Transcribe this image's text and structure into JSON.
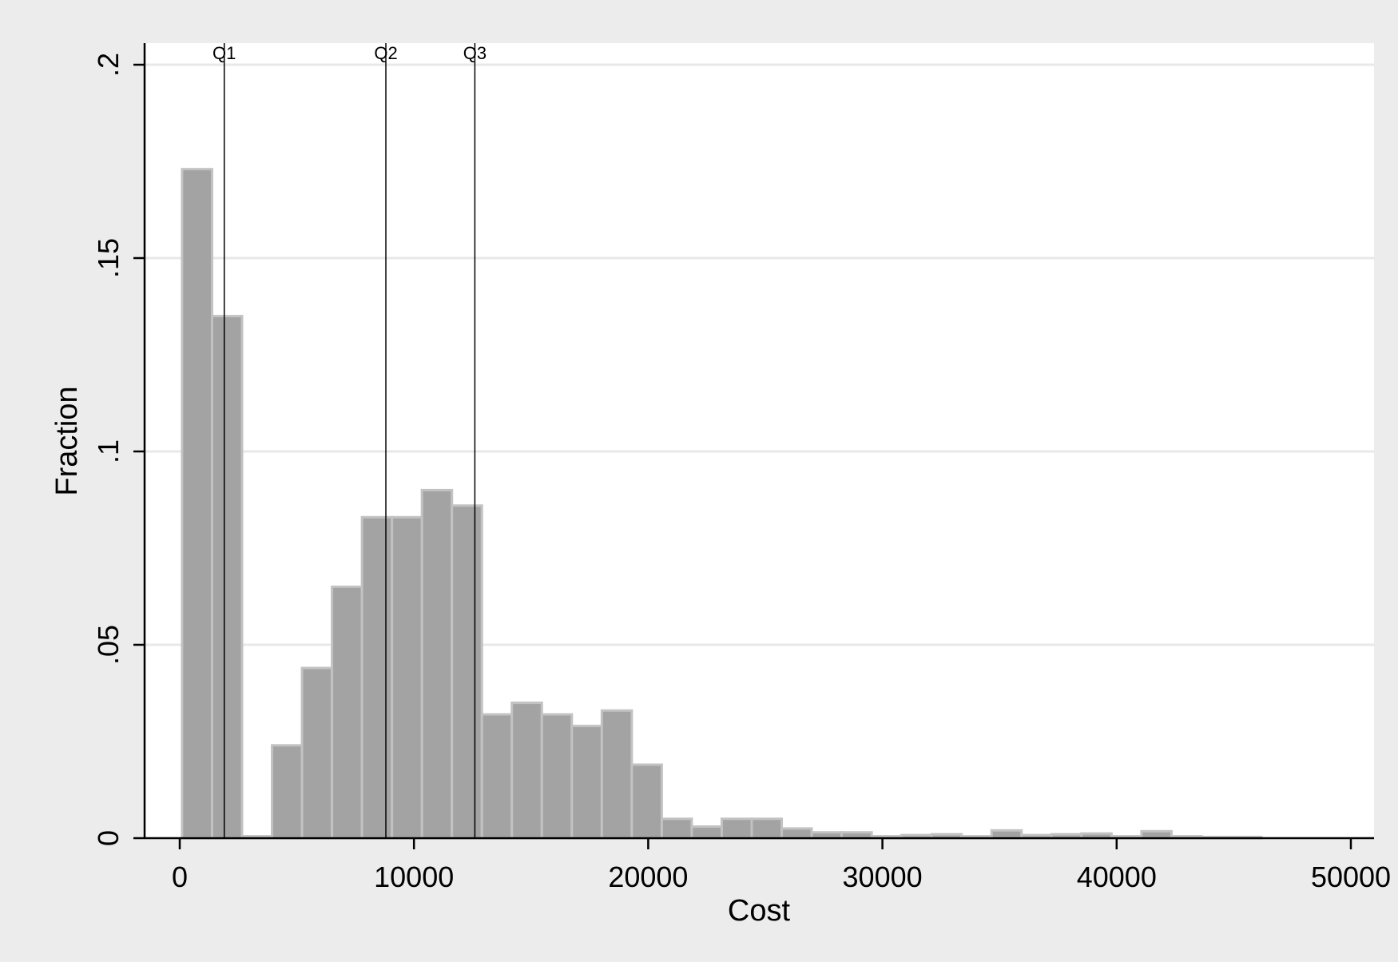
{
  "chart_data": {
    "type": "bar",
    "xlabel": "Cost",
    "ylabel": "Fraction",
    "xlim": [
      0,
      50000
    ],
    "ylim": [
      0,
      0.2
    ],
    "x_ticks": [
      {
        "value": 0,
        "label": "0"
      },
      {
        "value": 10000,
        "label": "10000"
      },
      {
        "value": 20000,
        "label": "20000"
      },
      {
        "value": 30000,
        "label": "30000"
      },
      {
        "value": 40000,
        "label": "40000"
      },
      {
        "value": 50000,
        "label": "50000"
      }
    ],
    "y_ticks": [
      {
        "value": 0,
        "label": "0"
      },
      {
        "value": 0.05,
        "label": ".05"
      },
      {
        "value": 0.1,
        "label": ".1"
      },
      {
        "value": 0.15,
        "label": ".15"
      },
      {
        "value": 0.2,
        "label": ".2"
      }
    ],
    "grid": true,
    "bin_start": 100,
    "bin_width": 1280,
    "values": [
      0.173,
      0.135,
      0.0005,
      0.024,
      0.044,
      0.065,
      0.083,
      0.083,
      0.09,
      0.086,
      0.032,
      0.035,
      0.032,
      0.029,
      0.033,
      0.019,
      0.005,
      0.003,
      0.005,
      0.005,
      0.0025,
      0.0015,
      0.0015,
      0.0005,
      0.0008,
      0.001,
      0.0005,
      0.002,
      0.0008,
      0.001,
      0.0012,
      0.0005,
      0.0018,
      0.0005,
      0.0003,
      0.0003
    ],
    "reference_lines": [
      {
        "label": "Q1",
        "x": 1900
      },
      {
        "label": "Q2",
        "x": 8800
      },
      {
        "label": "Q3",
        "x": 12600
      }
    ],
    "colors": {
      "outer_background": "#ececec",
      "plot_background": "#ffffff",
      "bar_fill": "#a3a3a3",
      "bar_edge": "#c2c2c2",
      "gridline": "#e8e8e8",
      "axis": "#000000"
    }
  }
}
